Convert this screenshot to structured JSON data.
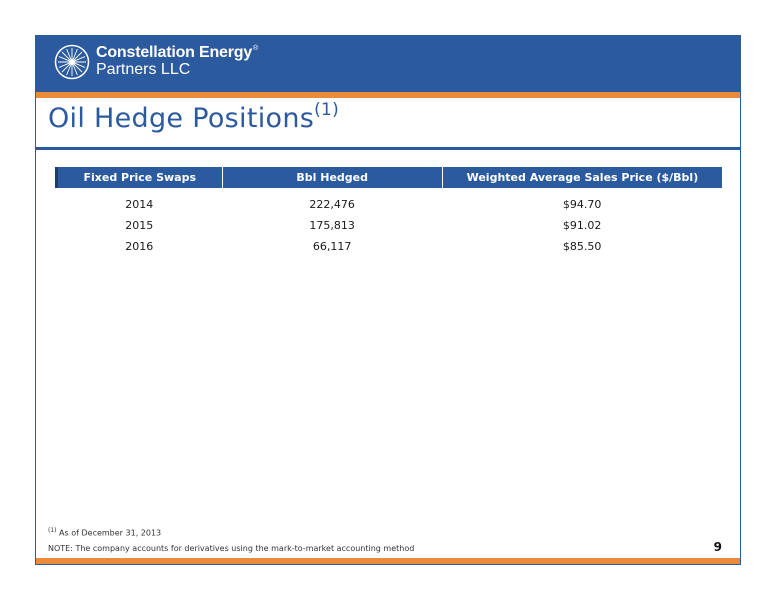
{
  "brand": {
    "name_line1": "Constellation Energy",
    "registered_mark": "®",
    "name_line2": "Partners LLC",
    "icon": "starburst-logo-icon"
  },
  "colors": {
    "primary": "#2b5a9e",
    "accent": "#e98b3a"
  },
  "page": {
    "title": "Oil Hedge Positions",
    "title_footnote_marker": "(1)",
    "page_number": "9"
  },
  "table": {
    "headers": [
      "Fixed Price Swaps",
      "Bbl Hedged",
      "Weighted Average Sales Price ($/Bbl)"
    ],
    "rows": [
      [
        "2014",
        "222,476",
        "$94.70"
      ],
      [
        "2015",
        "175,813",
        "$91.02"
      ],
      [
        "2016",
        "66,117",
        "$85.50"
      ]
    ]
  },
  "footnote": {
    "marker": "(1)",
    "text": "As of December 31, 2013"
  },
  "note": "NOTE:  The company accounts for derivatives using the mark-to-market accounting method"
}
